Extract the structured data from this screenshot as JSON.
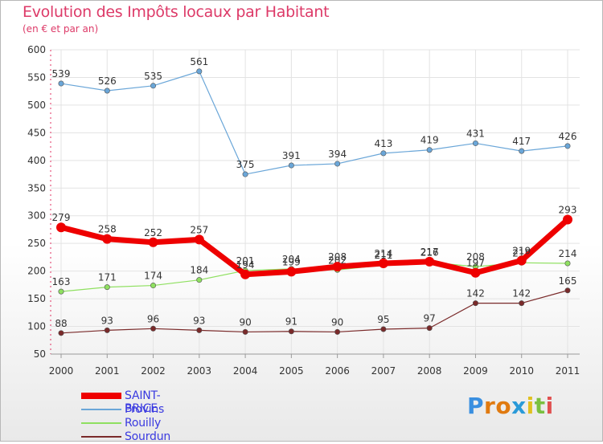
{
  "title": "Evolution des Impôts locaux par Habitant",
  "subtitle": "(en € et par an)",
  "chart_data": {
    "type": "line",
    "title": "Evolution des Impôts locaux par Habitant",
    "subtitle": "(en € et par an)",
    "xlabel": "",
    "ylabel": "",
    "ylim": [
      50,
      600
    ],
    "y_ticks": [
      50,
      100,
      150,
      200,
      250,
      300,
      350,
      400,
      450,
      500,
      550,
      600
    ],
    "categories": [
      "2000",
      "2001",
      "2002",
      "2003",
      "2004",
      "2005",
      "2006",
      "2007",
      "2008",
      "2009",
      "2010",
      "2011"
    ],
    "series": [
      {
        "name": "SAINT-BRICE",
        "color": "#ee0000",
        "values": [
          279,
          258,
          252,
          257,
          194,
          199,
          208,
          214,
          217,
          197,
          219,
          293
        ]
      },
      {
        "name": "Provins",
        "color": "#6aa6d8",
        "values": [
          539,
          526,
          535,
          561,
          375,
          391,
          394,
          413,
          419,
          431,
          417,
          426
        ]
      },
      {
        "name": "Rouilly",
        "color": "#8fe060",
        "values": [
          163,
          171,
          174,
          184,
          201,
          204,
          202,
          211,
          216,
          208,
          215,
          214
        ]
      },
      {
        "name": "Sourdun",
        "color": "#7a2a2a",
        "values": [
          88,
          93,
          96,
          93,
          90,
          91,
          90,
          95,
          97,
          142,
          142,
          165
        ]
      }
    ],
    "legend_position": "bottom-left",
    "grid": true
  },
  "legend": [
    {
      "name": "SAINT-BRICE",
      "color": "#ee0000"
    },
    {
      "name": "Provins",
      "color": "#6aa6d8"
    },
    {
      "name": "Rouilly",
      "color": "#8fe060"
    },
    {
      "name": "Sourdun",
      "color": "#7a2a2a"
    }
  ],
  "logo": {
    "letters": [
      "P",
      "r",
      "o",
      "x",
      "i",
      "t",
      "i"
    ],
    "colors": [
      "#3a8fe0",
      "#e07a10",
      "#e07a10",
      "#2a9ad8",
      "#e0c020",
      "#7ac040",
      "#e05050"
    ]
  }
}
